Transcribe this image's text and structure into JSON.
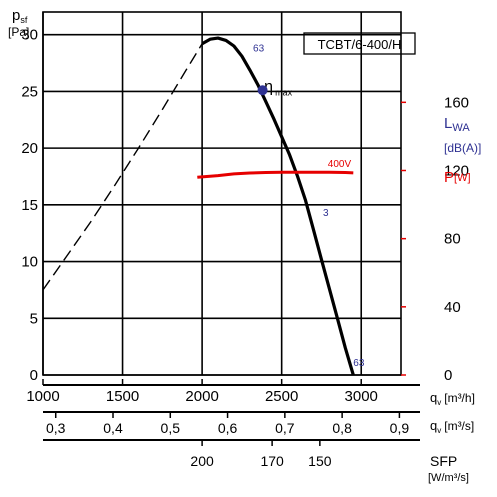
{
  "chart_data": {
    "type": "line",
    "model_label": "TCBT/6-400/H",
    "y_axis": {
      "label_main": "p",
      "label_sub": "sf",
      "unit": "[Pa]",
      "ticks": [
        0,
        5,
        10,
        15,
        20,
        25,
        30
      ],
      "ylim": [
        0,
        32
      ]
    },
    "x_axis": {
      "label": "q",
      "label_sub": "v",
      "unit": "[m³/h]",
      "ticks": [
        1000,
        1500,
        2000,
        2500,
        3000
      ],
      "xlim": [
        1000,
        3250
      ]
    },
    "x_axis_m3s": {
      "label": "q",
      "label_sub": "v",
      "unit": "[m³/s]",
      "ticks": [
        "0,3",
        "0,4",
        "0,5",
        "0,6",
        "0,7",
        "0,8",
        "0,9"
      ]
    },
    "sfp_axis": {
      "label": "SFP",
      "unit": "[W/m³/s]",
      "ticks": [
        {
          "label": "200",
          "x": 2000
        },
        {
          "label": "170",
          "x": 2440
        },
        {
          "label": "150",
          "x": 2740
        }
      ]
    },
    "lwa_axis": {
      "label_main": "L",
      "label_sub": "WA",
      "unit": "[dB(A)]",
      "color": "#2e3192"
    },
    "power_axis": {
      "label_main": "P",
      "unit": "[W]",
      "ticks": [
        0,
        40,
        80,
        120,
        160
      ],
      "ylim": [
        0,
        213
      ],
      "color": "#e60000"
    },
    "series": [
      {
        "style": "dashed",
        "color": "#000000",
        "x": [
          1000,
          1150,
          1300,
          1450,
          1600,
          1750,
          1900,
          2000
        ],
        "y": [
          7.5,
          10.5,
          13.5,
          16.7,
          20.0,
          23.4,
          26.9,
          29.2
        ]
      },
      {
        "style": "solid",
        "color": "#000000",
        "x": [
          2000,
          2050,
          2100,
          2150,
          2200,
          2250,
          2300,
          2350,
          2400,
          2450,
          2500,
          2550,
          2600,
          2650,
          2700,
          2750,
          2800,
          2850,
          2900,
          2950
        ],
        "y": [
          29.2,
          29.6,
          29.7,
          29.5,
          29.0,
          28.1,
          26.9,
          25.6,
          24.1,
          22.6,
          21.0,
          19.4,
          17.5,
          15.4,
          12.8,
          10.2,
          7.6,
          5.0,
          2.4,
          0
        ]
      },
      {
        "name": "400V",
        "style": "solid",
        "color": "#e60000",
        "axis": "power",
        "x": [
          1970,
          2100,
          2200,
          2300,
          2400,
          2500,
          2600,
          2700,
          2800,
          2900,
          2950
        ],
        "y": [
          116,
          117,
          118,
          118.5,
          118.8,
          119,
          119,
          119,
          119,
          118.8,
          118.6
        ]
      }
    ],
    "annotations": [
      {
        "text": "63",
        "x": 2320,
        "y": 28.5,
        "color": "#2e3192"
      },
      {
        "text": "η",
        "sub": "max",
        "x": 2390,
        "y": 25,
        "color": "#000000"
      },
      {
        "text": "3",
        "x": 2760,
        "y": 14,
        "color": "#2e3192"
      },
      {
        "text": "400V",
        "x": 2790,
        "y": 122,
        "color": "#e60000",
        "axis": "power"
      },
      {
        "text": "63",
        "x": 2950,
        "y": 0.8,
        "color": "#2e3192"
      }
    ],
    "marker": {
      "x": 2380,
      "y": 25.1,
      "color": "#2e3192"
    },
    "grid": true
  }
}
